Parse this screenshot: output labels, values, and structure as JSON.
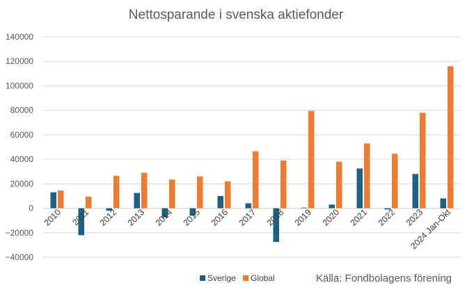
{
  "chart_data": {
    "type": "bar",
    "title": "Nettosparande i svenska aktiefonder",
    "xlabel": "",
    "ylabel": "",
    "categories": [
      "2010",
      "2011",
      "2012",
      "2013",
      "2014",
      "2015",
      "2016",
      "2017",
      "2018",
      "2019",
      "2020",
      "2021",
      "2022",
      "2023",
      "2024 Jan-Okt"
    ],
    "series": [
      {
        "name": "Sverige",
        "color": "#1f5f7f",
        "values": [
          13000,
          -22000,
          -2000,
          12500,
          -7500,
          -6000,
          10000,
          4000,
          -27500,
          500,
          3000,
          32500,
          -1000,
          28000,
          8000
        ]
      },
      {
        "name": "Global",
        "color": "#ed7d31",
        "values": [
          14500,
          9500,
          26500,
          29000,
          23500,
          26000,
          22000,
          46500,
          39000,
          79500,
          38000,
          53000,
          44500,
          78000,
          116000
        ]
      }
    ],
    "ylim": [
      -40000,
      140000
    ],
    "yticks": [
      140000,
      120000,
      100000,
      80000,
      60000,
      40000,
      20000,
      0,
      -20000,
      -40000
    ],
    "grid": true,
    "legend_position": "bottom",
    "source": "Källa: Fondbolagens förening"
  }
}
